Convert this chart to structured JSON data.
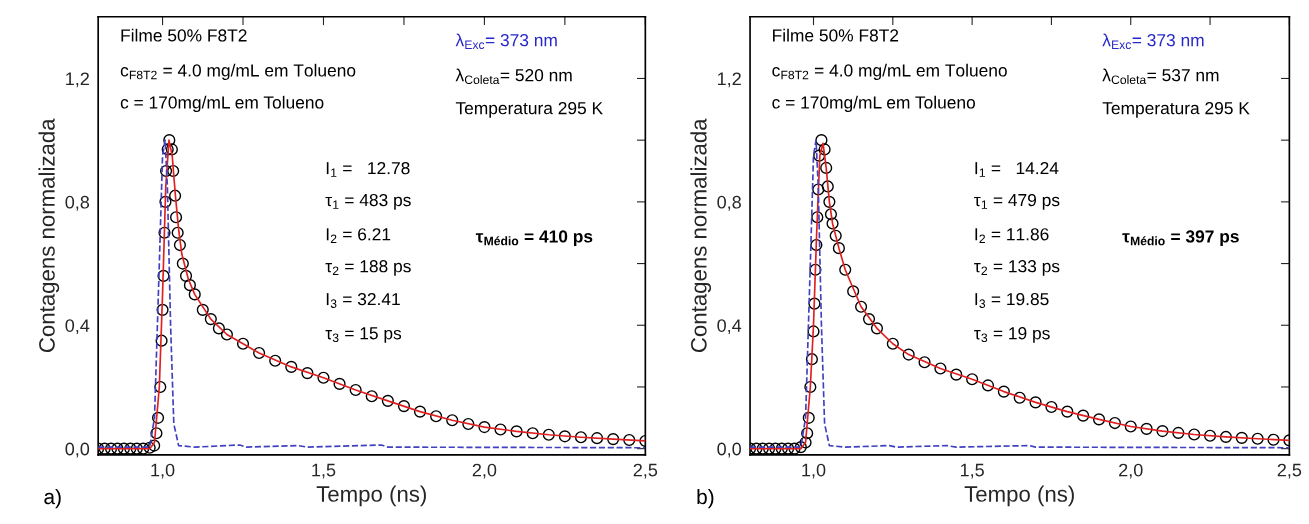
{
  "chart_data": [
    {
      "type": "scatter",
      "xlabel": "Tempo (ns)",
      "ylabel": "Contagens normalizada",
      "xlim": [
        0.8,
        2.5
      ],
      "ylim": [
        -0.02,
        1.4
      ],
      "xticks": [
        {
          "value": 1.0,
          "label": "1,0"
        },
        {
          "value": 1.25,
          "label": null
        },
        {
          "value": 1.5,
          "label": "1,5"
        },
        {
          "value": 1.75,
          "label": null
        },
        {
          "value": 2.0,
          "label": "2,0"
        },
        {
          "value": 2.25,
          "label": null
        },
        {
          "value": 2.5,
          "label": "2,5"
        }
      ],
      "yticks": [
        {
          "value": 0.0,
          "label": "0,0"
        },
        {
          "value": 0.2,
          "label": null
        },
        {
          "value": 0.4,
          "label": "0,4"
        },
        {
          "value": 0.6,
          "label": null
        },
        {
          "value": 0.8,
          "label": "0,8"
        },
        {
          "value": 1.0,
          "label": null
        },
        {
          "value": 1.2,
          "label": "1,2"
        }
      ],
      "grid": false,
      "legend": false,
      "annotations": [
        "Filme 50% F8T2",
        "c$_{F8T2}$ = 4.0 mg/mL em Tolueno",
        "c = 170mg/mL em Tolueno",
        "λ$_{Exc}$= 373 nm",
        "λ$_{Coleta}$= 520 nm",
        "Temperatura 295 K",
        "I$_{1}$ =   12.78",
        "τ$_{1}$ = 483 ps",
        "I$_{2}$ = 6.21",
        "τ$_{2}$ = 188 ps",
        "I$_{3}$ = 32.41",
        "τ$_{3}$ = 15 ps",
        "τ$_{Médio}$ = 410 ps",
        "a)"
      ],
      "series": [
        {
          "marker": "circle",
          "color": "#000000",
          "x": [
            0.8,
            0.82,
            0.84,
            0.86,
            0.88,
            0.9,
            0.92,
            0.94,
            0.96,
            0.974,
            0.981,
            0.986,
            0.993,
            0.997,
            1.0,
            1.003,
            1.006,
            1.009,
            1.011,
            1.016,
            1.021,
            1.029,
            1.033,
            1.039,
            1.042,
            1.047,
            1.054,
            1.063,
            1.073,
            1.085,
            1.1,
            1.125,
            1.15,
            1.175,
            1.2,
            1.25,
            1.3,
            1.35,
            1.4,
            1.45,
            1.5,
            1.55,
            1.6,
            1.65,
            1.7,
            1.75,
            1.8,
            1.85,
            1.9,
            1.95,
            2.0,
            2.05,
            2.1,
            2.15,
            2.2,
            2.25,
            2.3,
            2.35,
            2.4,
            2.45,
            2.5
          ],
          "values": [
            0,
            0,
            0,
            0,
            0,
            0,
            0,
            0,
            0.003,
            0.01,
            0.05,
            0.1,
            0.2,
            0.35,
            0.45,
            0.56,
            0.7,
            0.8,
            0.9,
            0.97,
            1.0,
            0.97,
            0.9,
            0.82,
            0.75,
            0.7,
            0.66,
            0.6,
            0.56,
            0.53,
            0.5,
            0.45,
            0.42,
            0.39,
            0.37,
            0.34,
            0.31,
            0.285,
            0.265,
            0.245,
            0.23,
            0.21,
            0.19,
            0.17,
            0.155,
            0.138,
            0.12,
            0.105,
            0.092,
            0.08,
            0.07,
            0.062,
            0.056,
            0.05,
            0.045,
            0.04,
            0.037,
            0.034,
            0.031,
            0.028,
            0.025
          ]
        },
        {
          "type": "line",
          "marker": "none",
          "color": "#e02020",
          "x": [
            0.8,
            0.96,
            0.975,
            0.99,
            1.0,
            1.01,
            1.02,
            1.03,
            1.04,
            1.05,
            1.06,
            1.08,
            1.1,
            1.15,
            1.2,
            1.25,
            1.3,
            1.4,
            1.5,
            1.6,
            1.7,
            1.8,
            1.9,
            2.0,
            2.1,
            2.2,
            2.3,
            2.4,
            2.5
          ],
          "values": [
            0,
            0,
            0.02,
            0.2,
            0.5,
            0.85,
            1.0,
            0.95,
            0.82,
            0.71,
            0.63,
            0.55,
            0.5,
            0.42,
            0.37,
            0.34,
            0.31,
            0.265,
            0.23,
            0.19,
            0.155,
            0.12,
            0.092,
            0.07,
            0.056,
            0.045,
            0.037,
            0.031,
            0.025
          ]
        },
        {
          "type": "line",
          "marker": "none",
          "line_style": "dashed",
          "color": "#4040c0",
          "x": [
            0.8,
            0.96,
            0.975,
            0.99,
            1.0,
            1.008,
            1.015,
            1.025,
            1.035,
            1.05,
            1.1,
            1.24,
            1.26,
            1.42,
            1.45,
            1.68,
            1.7,
            2.5
          ],
          "values": [
            0.005,
            0.005,
            0.1,
            0.6,
            0.95,
            1.0,
            0.85,
            0.4,
            0.08,
            0.01,
            0.005,
            0.012,
            0.005,
            0.01,
            0.005,
            0.012,
            0.005,
            0.003
          ]
        }
      ]
    },
    {
      "type": "scatter",
      "xlabel": "Tempo (ns)",
      "ylabel": "Contagens normalizada",
      "xlim": [
        0.8,
        2.5
      ],
      "ylim": [
        -0.02,
        1.4
      ],
      "xticks": [
        {
          "value": 1.0,
          "label": "1,0"
        },
        {
          "value": 1.25,
          "label": null
        },
        {
          "value": 1.5,
          "label": "1,5"
        },
        {
          "value": 1.75,
          "label": null
        },
        {
          "value": 2.0,
          "label": "2,0"
        },
        {
          "value": 2.25,
          "label": null
        },
        {
          "value": 2.5,
          "label": "2,5"
        }
      ],
      "yticks": [
        {
          "value": 0.0,
          "label": "0,0"
        },
        {
          "value": 0.2,
          "label": null
        },
        {
          "value": 0.4,
          "label": "0,4"
        },
        {
          "value": 0.6,
          "label": null
        },
        {
          "value": 0.8,
          "label": "0,8"
        },
        {
          "value": 1.0,
          "label": null
        },
        {
          "value": 1.2,
          "label": "1,2"
        }
      ],
      "grid": false,
      "legend": false,
      "annotations": [
        "Filme 50% F8T2",
        "c$_{F8T2}$ = 4.0 mg/mL em Tolueno",
        "c = 170mg/mL em Tolueno",
        "λ$_{Exc}$= 373 nm",
        "λ$_{Coleta}$= 537 nm",
        "Temperatura 295 K",
        "I$_{1}$ =   14.24",
        "τ$_{1}$ = 479 ps",
        "I$_{2}$ = 11.86",
        "τ$_{2}$ = 133 ps",
        "I$_{3}$ = 19.85",
        "τ$_{3}$ = 19 ps",
        "τ$_{Médio}$ = 397 ps",
        "b)"
      ],
      "series": [
        {
          "marker": "circle",
          "color": "#000000",
          "x": [
            0.8,
            0.82,
            0.84,
            0.86,
            0.88,
            0.9,
            0.92,
            0.94,
            0.96,
            0.975,
            0.98,
            0.985,
            0.99,
            0.995,
            1.0,
            1.003,
            1.006,
            1.009,
            1.012,
            1.015,
            1.018,
            1.025,
            1.035,
            1.04,
            1.045,
            1.05,
            1.055,
            1.06,
            1.07,
            1.08,
            1.1,
            1.125,
            1.15,
            1.175,
            1.2,
            1.25,
            1.3,
            1.35,
            1.4,
            1.45,
            1.5,
            1.55,
            1.6,
            1.65,
            1.7,
            1.75,
            1.8,
            1.85,
            1.9,
            1.95,
            2.0,
            2.05,
            2.1,
            2.15,
            2.2,
            2.25,
            2.3,
            2.35,
            2.4,
            2.45,
            2.5
          ],
          "values": [
            0,
            0,
            0,
            0,
            0,
            0,
            0,
            0,
            0.005,
            0.02,
            0.05,
            0.1,
            0.2,
            0.29,
            0.38,
            0.47,
            0.58,
            0.66,
            0.75,
            0.84,
            0.95,
            1.0,
            0.97,
            0.91,
            0.85,
            0.8,
            0.76,
            0.73,
            0.69,
            0.65,
            0.58,
            0.51,
            0.46,
            0.42,
            0.39,
            0.34,
            0.305,
            0.28,
            0.26,
            0.24,
            0.225,
            0.205,
            0.185,
            0.165,
            0.15,
            0.135,
            0.12,
            0.107,
            0.095,
            0.083,
            0.072,
            0.064,
            0.057,
            0.051,
            0.046,
            0.042,
            0.038,
            0.035,
            0.032,
            0.029,
            0.027
          ]
        },
        {
          "type": "line",
          "marker": "none",
          "color": "#e02020",
          "x": [
            0.8,
            0.96,
            0.975,
            0.99,
            1.0,
            1.01,
            1.02,
            1.03,
            1.04,
            1.05,
            1.06,
            1.08,
            1.1,
            1.15,
            1.2,
            1.25,
            1.3,
            1.4,
            1.5,
            1.6,
            1.7,
            1.8,
            1.9,
            2.0,
            2.1,
            2.2,
            2.3,
            2.4,
            2.5
          ],
          "values": [
            0,
            0,
            0.02,
            0.2,
            0.4,
            0.7,
            0.95,
            0.99,
            0.91,
            0.8,
            0.73,
            0.65,
            0.58,
            0.46,
            0.39,
            0.34,
            0.305,
            0.26,
            0.225,
            0.185,
            0.15,
            0.12,
            0.095,
            0.072,
            0.057,
            0.046,
            0.038,
            0.032,
            0.027
          ]
        },
        {
          "type": "line",
          "marker": "none",
          "line_style": "dashed",
          "color": "#4040c0",
          "x": [
            0.8,
            0.96,
            0.975,
            0.99,
            1.0,
            1.008,
            1.015,
            1.025,
            1.035,
            1.05,
            1.1,
            1.24,
            1.26,
            1.42,
            1.45,
            1.68,
            1.7,
            2.5
          ],
          "values": [
            0.005,
            0.005,
            0.1,
            0.6,
            0.95,
            1.0,
            0.85,
            0.4,
            0.08,
            0.01,
            0.005,
            0.01,
            0.005,
            0.01,
            0.005,
            0.01,
            0.005,
            0.003
          ]
        }
      ]
    }
  ]
}
